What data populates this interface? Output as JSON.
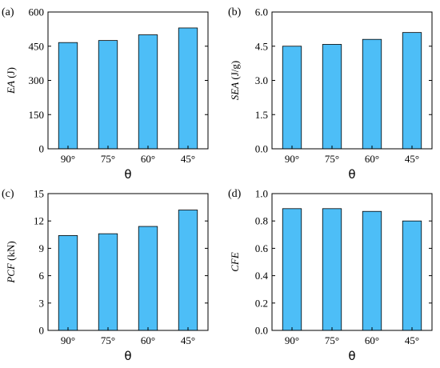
{
  "colors": {
    "bar": "#4DBEF7"
  },
  "chart_data": [
    {
      "type": "bar",
      "panel_label": "(a)",
      "categories": [
        "90°",
        "75°",
        "60°",
        "45°"
      ],
      "values": [
        466,
        475,
        500,
        530
      ],
      "xlabel": "θ",
      "ylabel_italic": "EA",
      "ylabel_unit": " (J)",
      "ylim": [
        0,
        600
      ],
      "yticks": [
        "0",
        "150",
        "300",
        "450",
        "600"
      ]
    },
    {
      "type": "bar",
      "panel_label": "(b)",
      "categories": [
        "90°",
        "75°",
        "60°",
        "45°"
      ],
      "values": [
        4.5,
        4.58,
        4.8,
        5.1
      ],
      "xlabel": "θ",
      "ylabel_italic": "SEA",
      "ylabel_unit": " (J/g)",
      "ylim": [
        0,
        6
      ],
      "yticks": [
        "0.0",
        "1.5",
        "3.0",
        "4.5",
        "6.0"
      ]
    },
    {
      "type": "bar",
      "panel_label": "(c)",
      "categories": [
        "90°",
        "75°",
        "60°",
        "45°"
      ],
      "values": [
        10.4,
        10.6,
        11.4,
        13.2
      ],
      "xlabel": "θ",
      "ylabel_italic": "PCF",
      "ylabel_unit": " (kN)",
      "ylim": [
        0,
        15
      ],
      "yticks": [
        "0",
        "3",
        "6",
        "9",
        "12",
        "15"
      ]
    },
    {
      "type": "bar",
      "panel_label": "(d)",
      "categories": [
        "90°",
        "75°",
        "60°",
        "45°"
      ],
      "values": [
        0.89,
        0.89,
        0.87,
        0.8
      ],
      "xlabel": "θ",
      "ylabel_italic": "CFE",
      "ylabel_unit": "",
      "ylim": [
        0,
        1
      ],
      "yticks": [
        "0.0",
        "0.2",
        "0.4",
        "0.6",
        "0.8",
        "1.0"
      ]
    }
  ]
}
